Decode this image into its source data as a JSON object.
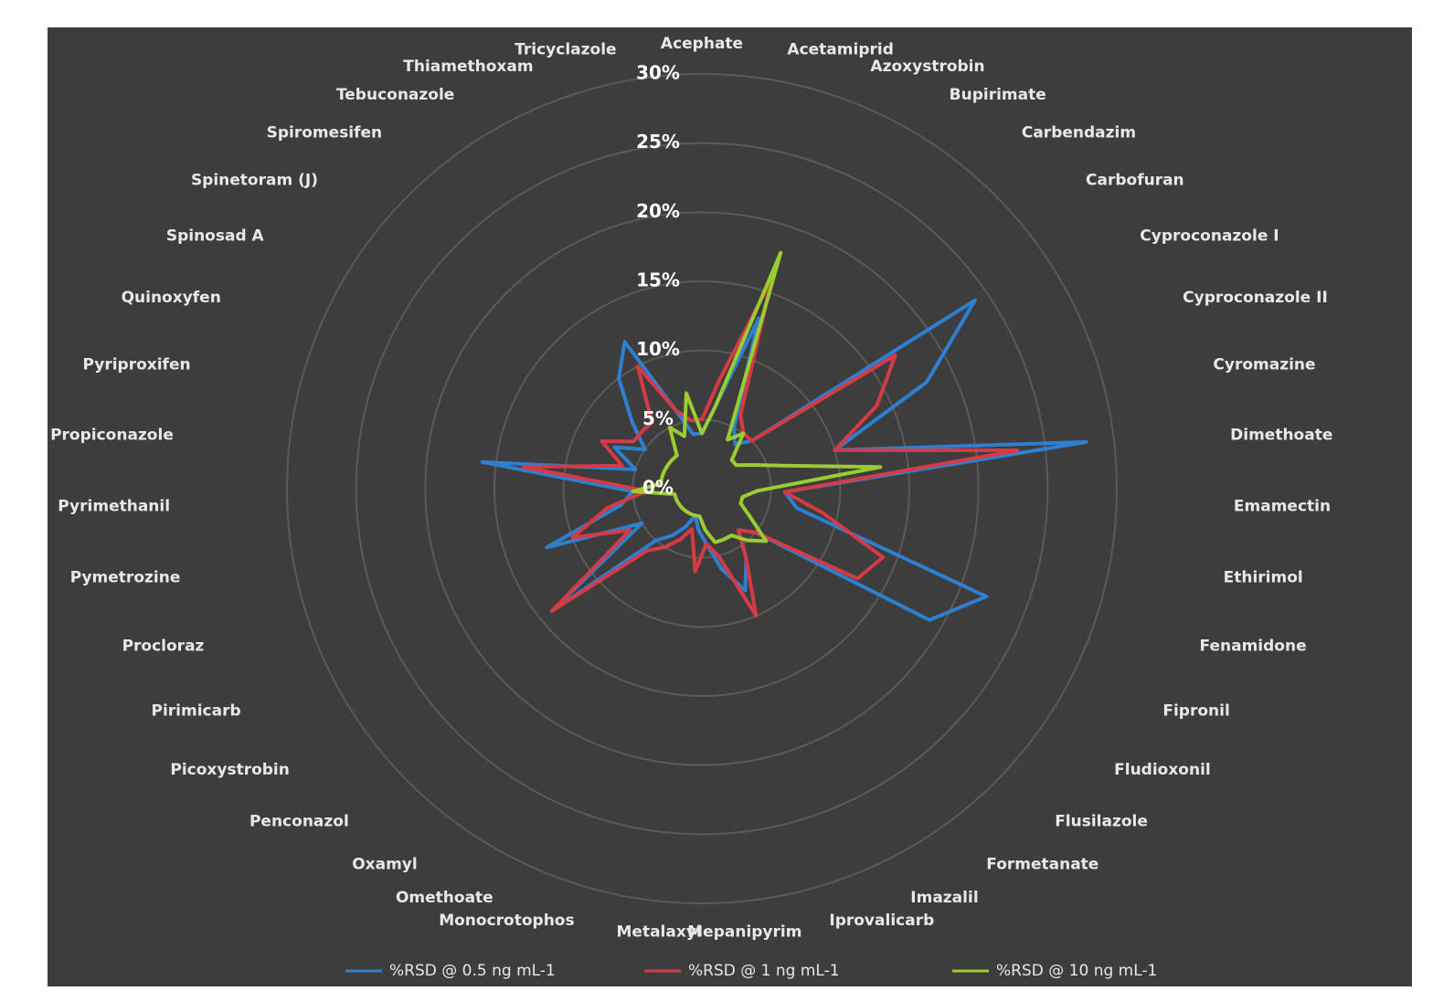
{
  "chart_data": {
    "type": "radar",
    "categories": [
      "Acephate",
      "Acetamiprid",
      "Azoxystrobin",
      "Bupirimate",
      "Carbendazim",
      "Carbofuran",
      "Cyproconazole I",
      "Cyproconazole II",
      "Cyromazine",
      "Dimethoate",
      "Emamectin",
      "Ethirimol",
      "Fenamidone",
      "Fipronil",
      "Fludioxonil",
      "Flusilazole",
      "Formetanate",
      "Imazalil",
      "Iprovalicarb",
      "Mepanipyrim",
      "Metalaxyl",
      "Monocrotophos",
      "Omethoate",
      "Oxamyl",
      "Penconazol",
      "Picoxystrobin",
      "Pirimicarb",
      "Procloraz",
      "Pymetrozine",
      "Pyrimethanil",
      "Propiconazole",
      "Pyriproxifen",
      "Quinoxyfen",
      "Spinosad A",
      "Spinetoram (J)",
      "Spiromesifen",
      "Tebuconazole",
      "Thiamethoxam",
      "Tricyclazole"
    ],
    "series": [
      {
        "name": "%RSD @ 0.5 ng mL-1",
        "color": "#2e7fd0",
        "values": [
          4,
          6,
          13,
          5,
          4,
          5,
          24,
          18,
          10,
          28,
          6,
          7,
          22,
          19,
          5,
          4,
          6,
          8,
          6,
          4,
          3,
          2,
          3,
          4,
          5,
          14,
          5,
          12,
          6,
          5,
          16,
          5,
          7,
          5,
          7,
          10,
          12,
          6,
          4
        ]
      },
      {
        "name": "%RSD @ 1 ng mL-1",
        "color": "#d63a45",
        "values": [
          5,
          8,
          16,
          6,
          5,
          5,
          17,
          14,
          10,
          23,
          6,
          9,
          14,
          13,
          5,
          4,
          6,
          10,
          5,
          4,
          6,
          3,
          4,
          5,
          6,
          14,
          6,
          10,
          7,
          4,
          13,
          6,
          8,
          6,
          6,
          6,
          10,
          6,
          5
        ]
      },
      {
        "name": "%RSD  @ 10 ng mL-1",
        "color": "#9acd32",
        "values": [
          4,
          6,
          18,
          4,
          5,
          3,
          3,
          4,
          6,
          13,
          4,
          3,
          3,
          4,
          6,
          5,
          4,
          4,
          4,
          3,
          2,
          2,
          2,
          2,
          2,
          2,
          2,
          2,
          2,
          5,
          3,
          3,
          3,
          3,
          3,
          3,
          5,
          4,
          7
        ]
      }
    ],
    "ylim": [
      0,
      30
    ],
    "yticks": [
      {
        "value": 0,
        "label": "0%"
      },
      {
        "value": 5,
        "label": "5%"
      },
      {
        "value": 10,
        "label": "10%"
      },
      {
        "value": 15,
        "label": "15%"
      },
      {
        "value": 20,
        "label": "20%"
      },
      {
        "value": 25,
        "label": "25%"
      },
      {
        "value": 30,
        "label": "30%"
      }
    ],
    "grid": true
  }
}
